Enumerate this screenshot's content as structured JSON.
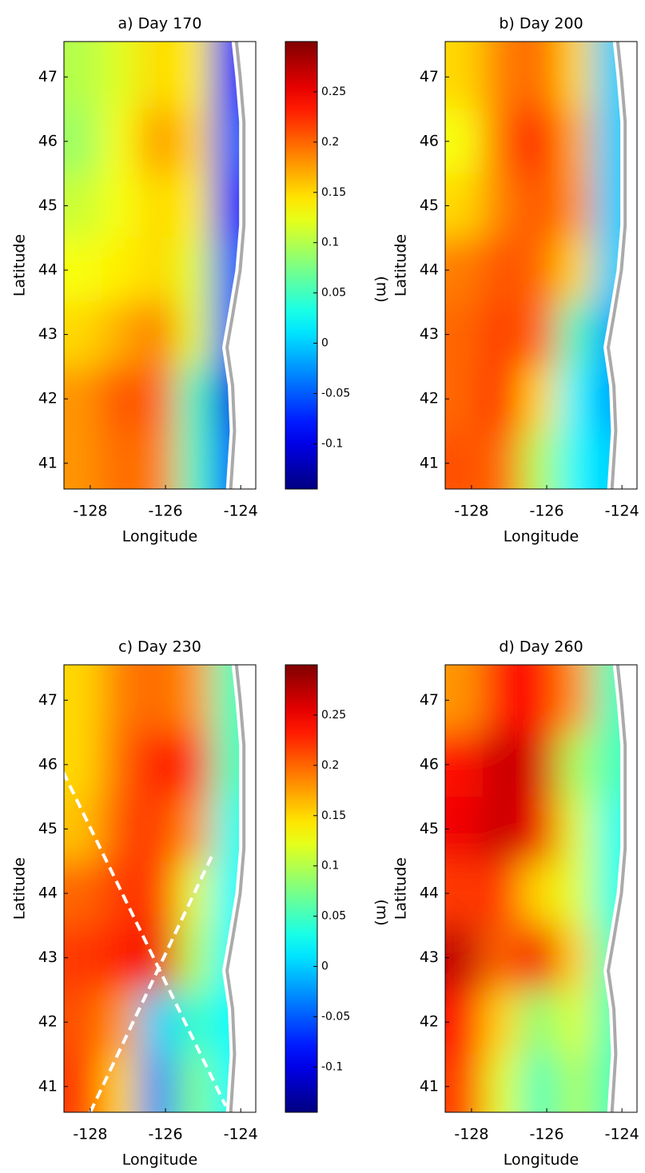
{
  "chart_data": [
    {
      "type": "heatmap",
      "title": "a) Day 170",
      "xlabel": "Longitude",
      "ylabel": "Latitude",
      "colormap": "jet",
      "x": [
        -128.2,
        -127.2,
        -126.2,
        -125.2,
        -124.3
      ],
      "y": [
        47,
        46,
        45,
        44,
        43,
        42,
        41
      ],
      "values": [
        [
          0.1,
          0.12,
          0.15,
          0.14,
          -0.08
        ],
        [
          0.09,
          0.13,
          0.18,
          0.15,
          -0.05
        ],
        [
          0.11,
          0.13,
          0.15,
          0.14,
          -0.08
        ],
        [
          0.13,
          0.14,
          0.15,
          0.12,
          -0.05
        ],
        [
          0.15,
          0.17,
          0.19,
          0.12,
          -0.05
        ],
        [
          0.18,
          0.21,
          0.2,
          0.05,
          -0.1
        ],
        [
          0.18,
          0.2,
          0.19,
          0.05,
          -0.05
        ]
      ],
      "xlim": [
        -128.7,
        -123.6
      ],
      "ylim": [
        40.6,
        47.55
      ],
      "xticks": [
        -128,
        -126,
        -124
      ],
      "yticks": [
        41,
        42,
        43,
        44,
        45,
        46,
        47
      ],
      "clim": [
        -0.145,
        0.3
      ],
      "colorbar": {
        "label": "(m)",
        "ticks": [
          -0.1,
          -0.05,
          0,
          0.05,
          0.1,
          0.15,
          0.2,
          0.25
        ]
      }
    },
    {
      "type": "heatmap",
      "title": "b) Day 200",
      "xlabel": "Longitude",
      "ylabel": "Latitude",
      "colormap": "jet",
      "x": [
        -128.2,
        -127.2,
        -126.2,
        -125.2,
        -124.3
      ],
      "y": [
        47,
        46,
        45,
        44,
        43,
        42,
        41
      ],
      "values": [
        [
          0.15,
          0.19,
          0.2,
          0.15,
          0.0
        ],
        [
          0.13,
          0.2,
          0.24,
          0.17,
          0.0
        ],
        [
          0.15,
          0.19,
          0.21,
          0.18,
          0.0
        ],
        [
          0.19,
          0.21,
          0.2,
          0.15,
          0.0
        ],
        [
          0.2,
          0.22,
          0.2,
          0.05,
          -0.02
        ],
        [
          0.2,
          0.23,
          0.15,
          0.02,
          -0.02
        ],
        [
          0.21,
          0.2,
          0.1,
          0.02,
          0.0
        ]
      ],
      "xlim": [
        -128.7,
        -123.6
      ],
      "ylim": [
        40.6,
        47.55
      ],
      "xticks": [
        -128,
        -126,
        -124
      ],
      "yticks": [
        41,
        42,
        43,
        44,
        45,
        46,
        47
      ],
      "clim": [
        -0.145,
        0.3
      ]
    },
    {
      "type": "heatmap",
      "title": "c) Day 230",
      "xlabel": "Longitude",
      "ylabel": "Latitude",
      "colormap": "jet",
      "x": [
        -128.2,
        -127.2,
        -126.2,
        -125.2,
        -124.3
      ],
      "y": [
        47,
        46,
        45,
        44,
        43,
        42,
        41
      ],
      "values": [
        [
          0.15,
          0.19,
          0.2,
          0.18,
          0.05
        ],
        [
          0.15,
          0.2,
          0.24,
          0.22,
          0.05
        ],
        [
          0.16,
          0.21,
          0.22,
          0.18,
          0.03
        ],
        [
          0.2,
          0.22,
          0.22,
          0.12,
          0.02
        ],
        [
          0.22,
          0.23,
          0.25,
          0.1,
          0.02
        ],
        [
          0.21,
          0.18,
          0.0,
          0.05,
          0.02
        ],
        [
          0.22,
          0.15,
          -0.03,
          0.08,
          0.02
        ]
      ],
      "xlim": [
        -128.7,
        -123.6
      ],
      "ylim": [
        40.6,
        47.55
      ],
      "xticks": [
        -128,
        -126,
        -124
      ],
      "yticks": [
        41,
        42,
        43,
        44,
        45,
        46,
        47
      ],
      "clim": [
        -0.145,
        0.3
      ],
      "colorbar": {
        "label": "(m)",
        "ticks": [
          -0.1,
          -0.05,
          0,
          0.05,
          0.1,
          0.15,
          0.2,
          0.25
        ]
      }
    },
    {
      "type": "heatmap",
      "title": "d) Day 260",
      "xlabel": "Longitude",
      "ylabel": "Latitude",
      "colormap": "jet",
      "x": [
        -128.2,
        -127.2,
        -126.2,
        -125.2,
        -124.3
      ],
      "y": [
        47,
        46,
        45,
        44,
        43,
        42,
        41
      ],
      "values": [
        [
          0.18,
          0.24,
          0.24,
          0.18,
          0.05
        ],
        [
          0.24,
          0.27,
          0.26,
          0.1,
          0.05
        ],
        [
          0.25,
          0.27,
          0.25,
          0.12,
          0.03
        ],
        [
          0.22,
          0.22,
          0.15,
          0.12,
          0.03
        ],
        [
          0.27,
          0.2,
          0.25,
          0.15,
          0.05
        ],
        [
          0.24,
          0.15,
          0.08,
          0.12,
          0.05
        ],
        [
          0.22,
          0.12,
          0.05,
          0.1,
          0.05
        ]
      ],
      "xlim": [
        -128.7,
        -123.6
      ],
      "ylim": [
        40.6,
        47.55
      ],
      "xticks": [
        -128,
        -126,
        -124
      ],
      "yticks": [
        41,
        42,
        43,
        44,
        45,
        46,
        47
      ],
      "clim": [
        -0.145,
        0.3
      ]
    }
  ]
}
